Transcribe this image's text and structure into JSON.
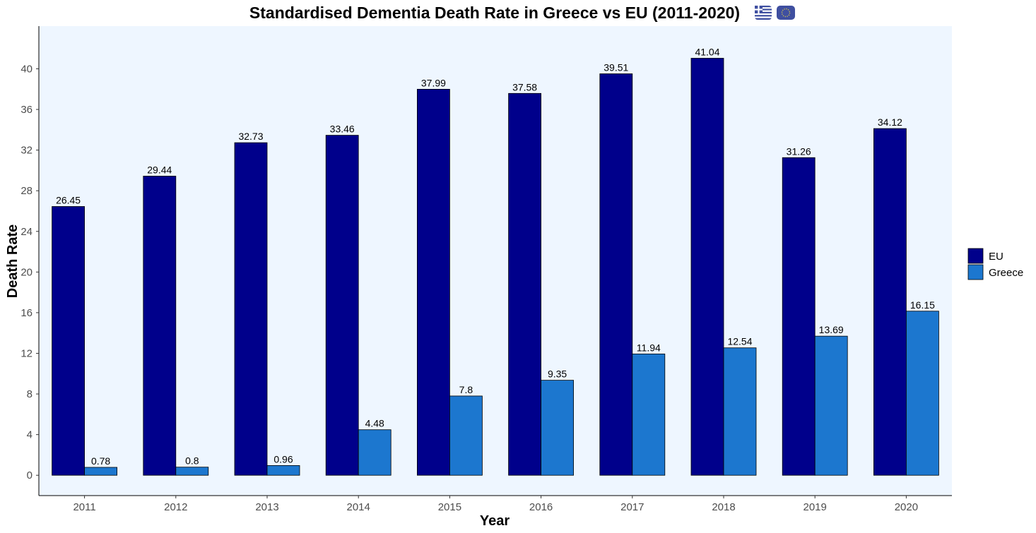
{
  "chart_data": {
    "type": "bar",
    "title": "Standardised Dementia Death Rate in Greece vs EU (2011-2020)",
    "title_icons": [
      "greece-flag-icon",
      "eu-flag-icon"
    ],
    "xlabel": "Year",
    "ylabel": "Death Rate",
    "categories": [
      "2011",
      "2012",
      "2013",
      "2014",
      "2015",
      "2016",
      "2017",
      "2018",
      "2019",
      "2020"
    ],
    "series": [
      {
        "name": "EU",
        "color": "#00008B",
        "values": [
          26.45,
          29.44,
          32.73,
          33.46,
          37.99,
          37.58,
          39.51,
          41.04,
          31.26,
          34.12
        ],
        "labels": [
          "26.45",
          "29.44",
          "32.73",
          "33.46",
          "37.99",
          "37.58",
          "39.51",
          "41.04",
          "31.26",
          "34.12"
        ]
      },
      {
        "name": "Greece",
        "color": "#1C77CF",
        "values": [
          0.78,
          0.8,
          0.96,
          4.48,
          7.8,
          9.35,
          11.94,
          12.54,
          13.69,
          16.15
        ],
        "labels": [
          "0.78",
          "0.8",
          "0.96",
          "4.48",
          "7.8",
          "9.35",
          "11.94",
          "12.54",
          "13.69",
          "16.15"
        ]
      }
    ],
    "yticks": [
      "0",
      "4",
      "8",
      "12",
      "16",
      "20",
      "24",
      "28",
      "32",
      "36",
      "40"
    ],
    "ylim": [
      -2,
      44.2
    ],
    "grid": false,
    "legend_position": "right",
    "panel_background": "#EEF6FF"
  }
}
